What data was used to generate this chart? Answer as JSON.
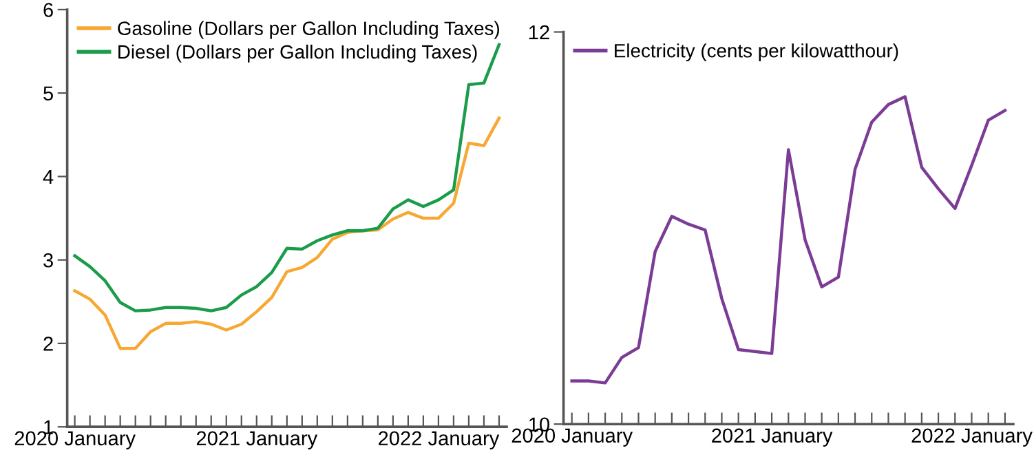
{
  "chart_data": [
    {
      "type": "line",
      "categories": [
        "2020 January",
        null,
        null,
        null,
        null,
        null,
        null,
        null,
        null,
        null,
        null,
        null,
        "2021 January",
        null,
        null,
        null,
        null,
        null,
        null,
        null,
        null,
        null,
        null,
        null,
        "2022 January",
        null,
        null,
        null,
        null
      ],
      "ylim": [
        1,
        6
      ],
      "yticks": [
        1,
        2,
        3,
        4,
        5,
        6
      ],
      "grid": false,
      "legend": "top left",
      "series": [
        {
          "name": "Gasoline (Dollars per Gallon Including Taxes)",
          "color": "#f7a833",
          "values": [
            2.63,
            2.53,
            2.34,
            1.94,
            1.94,
            2.14,
            2.24,
            2.24,
            2.26,
            2.23,
            2.16,
            2.23,
            2.38,
            2.55,
            2.86,
            2.91,
            3.03,
            3.25,
            3.33,
            3.35,
            3.36,
            3.49,
            3.57,
            3.5,
            3.5,
            3.68,
            4.4,
            4.37,
            4.7
          ]
        },
        {
          "name": "Diesel (Dollars per Gallon Including Taxes)",
          "color": "#1a9c4a",
          "values": [
            3.05,
            2.92,
            2.75,
            2.49,
            2.39,
            2.4,
            2.43,
            2.43,
            2.42,
            2.39,
            2.43,
            2.58,
            2.68,
            2.85,
            3.14,
            3.13,
            3.23,
            3.3,
            3.35,
            3.35,
            3.38,
            3.61,
            3.72,
            3.64,
            3.72,
            3.84,
            5.1,
            5.12,
            5.58
          ]
        }
      ]
    },
    {
      "type": "line",
      "categories": [
        "2020 January",
        null,
        null,
        null,
        null,
        null,
        null,
        null,
        null,
        null,
        null,
        null,
        "2021 January",
        null,
        null,
        null,
        null,
        null,
        null,
        null,
        null,
        null,
        null,
        null,
        "2022 January",
        null,
        null
      ],
      "ylim": [
        10,
        12
      ],
      "yticks": [
        10,
        12
      ],
      "grid": false,
      "legend": "top left",
      "series": [
        {
          "name": "Electricity (cents per kilowatthour)",
          "color": "#7b3c96",
          "values": [
            10.22,
            10.22,
            10.21,
            10.34,
            10.39,
            10.88,
            11.06,
            11.02,
            10.99,
            10.64,
            10.38,
            10.37,
            10.36,
            11.4,
            10.94,
            10.7,
            10.75,
            11.3,
            11.54,
            11.63,
            11.67,
            11.31,
            11.2,
            11.1,
            11.32,
            11.55,
            11.6
          ]
        }
      ]
    }
  ]
}
